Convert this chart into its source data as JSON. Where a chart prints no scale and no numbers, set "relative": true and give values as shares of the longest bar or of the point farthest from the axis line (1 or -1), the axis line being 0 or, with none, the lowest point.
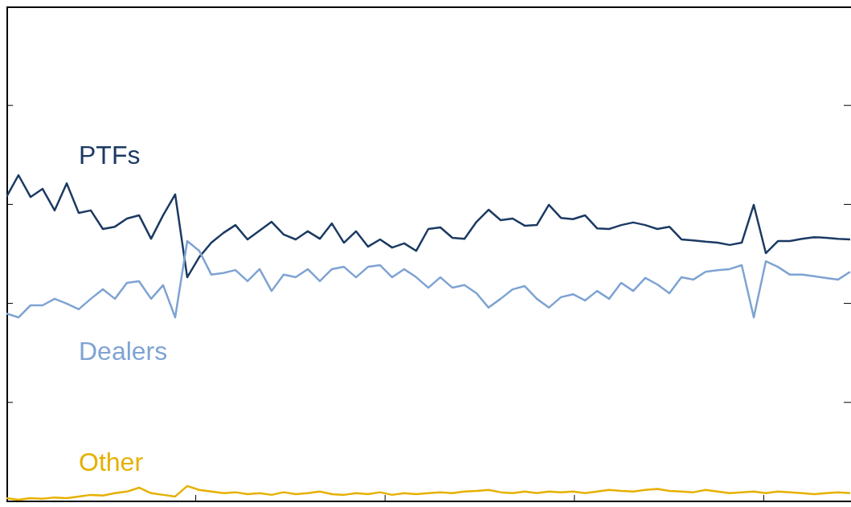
{
  "chart_data": {
    "type": "line",
    "relative": true,
    "grid": false,
    "categories": [
      null,
      null,
      null,
      null,
      null,
      null,
      null,
      null,
      null,
      null,
      null,
      null,
      null,
      null,
      null,
      null,
      null,
      null,
      null,
      null,
      null,
      null,
      null,
      null,
      null,
      null,
      null,
      null,
      null,
      null,
      null,
      null,
      null,
      null,
      null,
      null,
      null,
      null,
      null,
      null,
      null,
      null,
      null,
      null,
      null,
      null,
      null,
      null,
      null,
      null,
      null,
      null,
      null,
      null,
      null,
      null,
      null,
      null,
      null,
      null,
      null,
      null,
      null,
      null,
      null,
      null,
      null,
      null,
      null,
      null,
      null
    ],
    "series": [
      {
        "name": "PTFs",
        "color": "#1b3a63",
        "values": [
          0.933,
          1.0,
          0.933,
          0.958,
          0.892,
          0.975,
          0.884,
          0.892,
          0.835,
          0.842,
          0.867,
          0.877,
          0.805,
          0.877,
          0.941,
          0.687,
          0.749,
          0.793,
          0.823,
          0.847,
          0.803,
          0.83,
          0.857,
          0.818,
          0.803,
          0.828,
          0.805,
          0.852,
          0.793,
          0.828,
          0.781,
          0.803,
          0.778,
          0.791,
          0.768,
          0.835,
          0.84,
          0.808,
          0.805,
          0.857,
          0.894,
          0.862,
          0.867,
          0.845,
          0.847,
          0.909,
          0.869,
          0.865,
          0.877,
          0.837,
          0.835,
          0.847,
          0.855,
          0.847,
          0.835,
          0.842,
          0.803,
          0.8,
          0.796,
          0.793,
          0.786,
          0.793,
          0.909,
          0.761,
          0.798,
          0.798,
          0.805,
          0.81,
          0.808,
          0.805,
          0.803
        ]
      },
      {
        "name": "Dealers",
        "color": "#7ea3d3",
        "values": [
          0.576,
          0.564,
          0.601,
          0.601,
          0.621,
          0.606,
          0.589,
          0.621,
          0.65,
          0.621,
          0.67,
          0.675,
          0.621,
          0.663,
          0.564,
          0.798,
          0.768,
          0.695,
          0.7,
          0.709,
          0.675,
          0.712,
          0.645,
          0.695,
          0.687,
          0.712,
          0.675,
          0.712,
          0.719,
          0.687,
          0.719,
          0.724,
          0.687,
          0.712,
          0.687,
          0.655,
          0.687,
          0.655,
          0.663,
          0.638,
          0.594,
          0.621,
          0.65,
          0.66,
          0.621,
          0.594,
          0.626,
          0.635,
          0.616,
          0.645,
          0.621,
          0.67,
          0.645,
          0.685,
          0.665,
          0.638,
          0.687,
          0.68,
          0.704,
          0.709,
          0.712,
          0.724,
          0.564,
          0.736,
          0.719,
          0.695,
          0.695,
          0.69,
          0.685,
          0.68,
          0.704
        ]
      },
      {
        "name": "Other",
        "color": "#e6b000",
        "values": [
          0.01,
          0.005,
          0.01,
          0.008,
          0.012,
          0.01,
          0.015,
          0.02,
          0.018,
          0.025,
          0.03,
          0.042,
          0.025,
          0.02,
          0.015,
          0.047,
          0.035,
          0.03,
          0.025,
          0.028,
          0.022,
          0.025,
          0.02,
          0.028,
          0.022,
          0.025,
          0.03,
          0.022,
          0.02,
          0.025,
          0.022,
          0.028,
          0.02,
          0.025,
          0.022,
          0.025,
          0.028,
          0.025,
          0.03,
          0.032,
          0.035,
          0.028,
          0.025,
          0.03,
          0.025,
          0.03,
          0.028,
          0.03,
          0.025,
          0.03,
          0.035,
          0.032,
          0.03,
          0.035,
          0.038,
          0.032,
          0.03,
          0.028,
          0.035,
          0.03,
          0.025,
          0.028,
          0.03,
          0.025,
          0.03,
          0.028,
          0.025,
          0.022,
          0.025,
          0.028,
          0.025
        ]
      }
    ]
  }
}
